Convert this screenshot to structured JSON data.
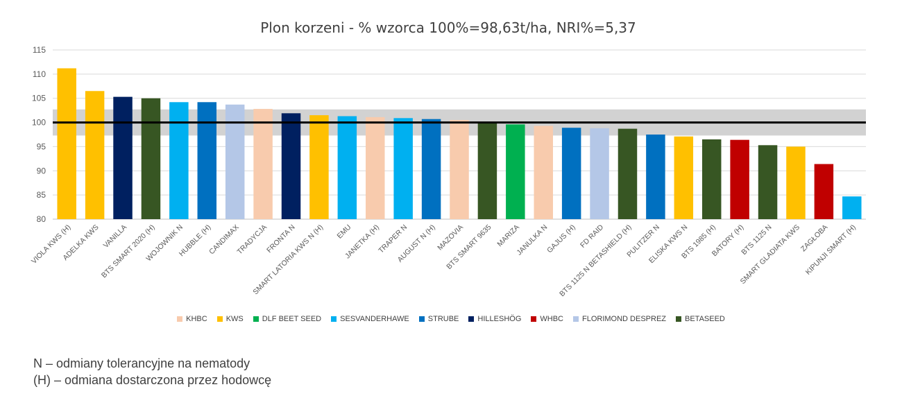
{
  "chart_data": {
    "type": "bar",
    "title": "Plon korzeni - % wzorca 100%=98,63t/ha, NRI%=5,37",
    "xlabel": "",
    "ylabel": "",
    "ylim": [
      80,
      115
    ],
    "yticks": [
      80,
      85,
      90,
      95,
      100,
      105,
      110,
      115
    ],
    "grid": true,
    "reference_line": 100,
    "reference_band": [
      97.3,
      102.7
    ],
    "categories": [
      "VIOLA KWS (H)",
      "ADELKA KWS",
      "VANILLA",
      "BTS SMART 2020 (H)",
      "WOJOWNIK N",
      "HUBBLE (H)",
      "CANDIMAX",
      "TRADYCJA",
      "FRONTA N",
      "SMART LATORIA KWS N (H)",
      "EMU",
      "JANETKA (H)",
      "TRAPER N",
      "AUGUST N (H)",
      "MAZOVIA",
      "BTS SMART 9635",
      "MARIZA",
      "JANULKA N",
      "GAJUS (H)",
      "FD RAID",
      "BTS 1125 N BETASHIELD (H)",
      "PULITZER N",
      "ELISKA KWS N",
      "BTS 1985 (H)",
      "BATORY (H)",
      "BTS 1125 N",
      "SMART GLADIATA KWS",
      "ZAGŁOBA",
      "KIPUNJI SMART (H)"
    ],
    "values": [
      111.2,
      106.5,
      105.3,
      105.0,
      104.2,
      104.2,
      103.7,
      102.8,
      101.9,
      101.5,
      101.3,
      101.1,
      100.9,
      100.7,
      100.5,
      100.1,
      99.6,
      99.3,
      98.9,
      98.8,
      98.7,
      97.5,
      97.1,
      96.5,
      96.4,
      95.3,
      95.0,
      91.4,
      84.7
    ],
    "breeders": [
      "KWS",
      "KWS",
      "HILLESHÖG",
      "BETASEED",
      "SESVANDERHAWE",
      "STRUBE",
      "FLORIMOND DESPREZ",
      "KHBC",
      "HILLESHÖG",
      "KWS",
      "SESVANDERHAWE",
      "KHBC",
      "SESVANDERHAWE",
      "STRUBE",
      "KHBC",
      "BETASEED",
      "DLF BEET SEED",
      "KHBC",
      "STRUBE",
      "FLORIMOND DESPREZ",
      "BETASEED",
      "STRUBE",
      "KWS",
      "BETASEED",
      "WHBC",
      "BETASEED",
      "KWS",
      "WHBC",
      "SESVANDERHAWE"
    ],
    "legend": [
      {
        "name": "KHBC",
        "color": "#F8CBAD"
      },
      {
        "name": "KWS",
        "color": "#FFC000"
      },
      {
        "name": "DLF BEET SEED",
        "color": "#00B050"
      },
      {
        "name": "SESVANDERHAWE",
        "color": "#00B0F0"
      },
      {
        "name": "STRUBE",
        "color": "#0070C0"
      },
      {
        "name": "HILLESHÖG",
        "color": "#002060"
      },
      {
        "name": "WHBC",
        "color": "#C00000"
      },
      {
        "name": "FLORIMOND DESPREZ",
        "color": "#B4C7E7"
      },
      {
        "name": "BETASEED",
        "color": "#375623"
      }
    ],
    "legend_position": "bottom"
  },
  "notes": [
    "N – odmiany tolerancyjne na nematody",
    "(H) – odmiana dostarczona przez hodowcę"
  ]
}
